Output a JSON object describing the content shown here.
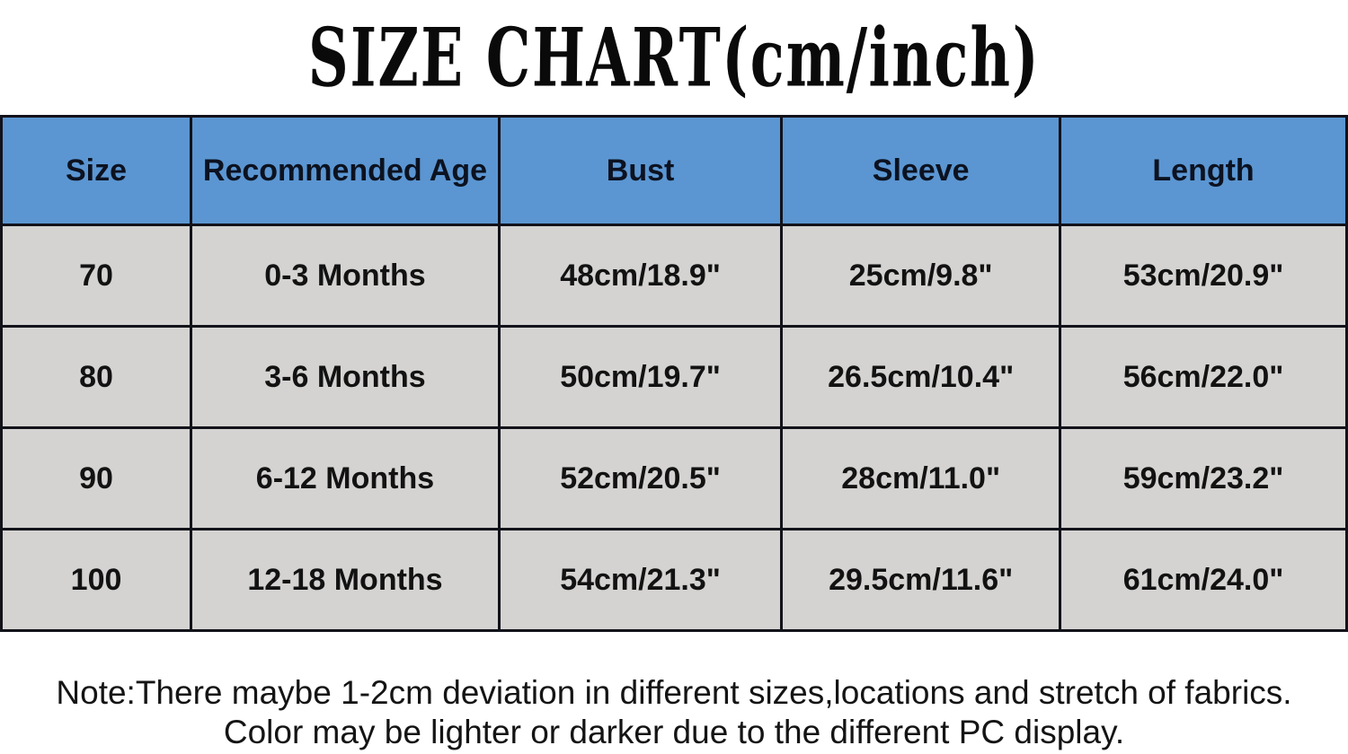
{
  "title": "SIZE CHART(cm/inch)",
  "table": {
    "columns": [
      "Size",
      "Recommended Age",
      "Bust",
      "Sleeve",
      "Length"
    ],
    "rows": [
      [
        "70",
        "0-3 Months",
        "48cm/18.9\"",
        "25cm/9.8\"",
        "53cm/20.9\""
      ],
      [
        "80",
        "3-6 Months",
        "50cm/19.7\"",
        "26.5cm/10.4\"",
        "56cm/22.0\""
      ],
      [
        "90",
        "6-12 Months",
        "52cm/20.5\"",
        "28cm/11.0\"",
        "59cm/23.2\""
      ],
      [
        "100",
        "12-18 Months",
        "54cm/21.3\"",
        "29.5cm/11.6\"",
        "61cm/24.0\""
      ]
    ]
  },
  "note": {
    "line1": "Note:There maybe 1-2cm deviation in different sizes,locations and stretch of fabrics.",
    "line2": "Color may be lighter or darker due to the different PC display."
  },
  "colors": {
    "header_bg": "#5b96d2",
    "row_bg": "#d4d3d1",
    "border": "#12121a"
  }
}
